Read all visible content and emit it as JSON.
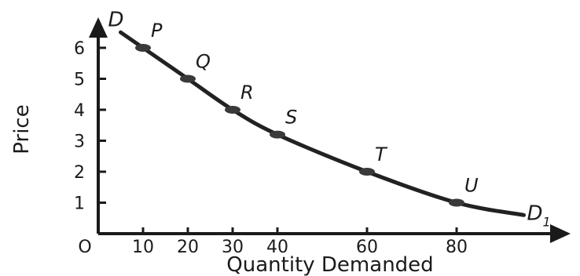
{
  "chart_data": {
    "type": "line",
    "xlabel": "Quantity Demanded",
    "ylabel": "Price",
    "origin_label": "O",
    "xlim": [
      0,
      100
    ],
    "ylim": [
      0,
      7
    ],
    "x_ticks": [
      10,
      20,
      30,
      40,
      60,
      80
    ],
    "y_ticks": [
      1,
      2,
      3,
      4,
      5,
      6
    ],
    "grid": false,
    "curve_labels": {
      "start": "D",
      "end": "D",
      "end_subscript": "1"
    },
    "curve": {
      "x": [
        5,
        10,
        20,
        30,
        40,
        60,
        80,
        95
      ],
      "y": [
        6.5,
        6,
        5,
        4,
        3.2,
        2,
        1,
        0.6
      ]
    },
    "points": [
      {
        "label": "P",
        "x": 10,
        "y": 6
      },
      {
        "label": "Q",
        "x": 20,
        "y": 5
      },
      {
        "label": "R",
        "x": 30,
        "y": 4
      },
      {
        "label": "S",
        "x": 40,
        "y": 3.2
      },
      {
        "label": "T",
        "x": 60,
        "y": 2
      },
      {
        "label": "U",
        "x": 80,
        "y": 1
      }
    ]
  }
}
